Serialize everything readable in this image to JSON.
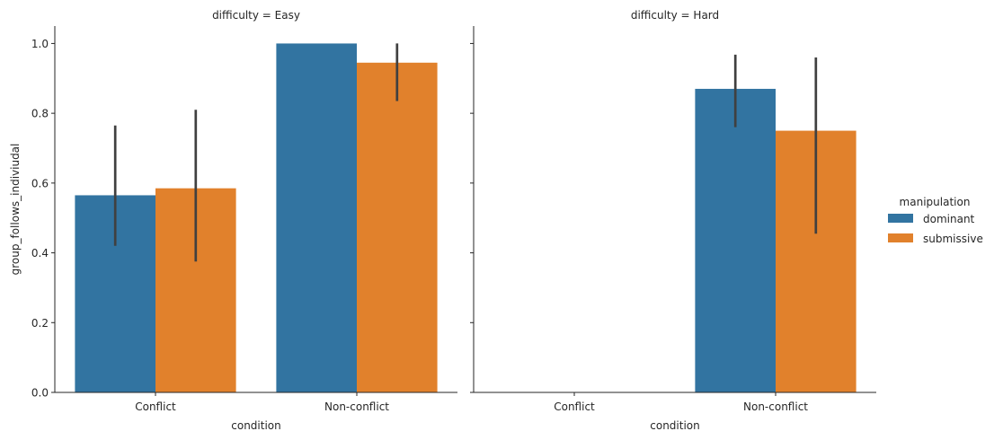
{
  "chart_data": {
    "type": "bar",
    "facet_variable": "difficulty",
    "panels": [
      {
        "title": "difficulty = Easy",
        "categories": [
          "Conflict",
          "Non-conflict"
        ],
        "series": [
          {
            "name": "dominant",
            "values": [
              0.565,
              1.0
            ],
            "ci_low": [
              0.42,
              1.0
            ],
            "ci_high": [
              0.765,
              1.0
            ]
          },
          {
            "name": "submissive",
            "values": [
              0.585,
              0.945
            ],
            "ci_low": [
              0.375,
              0.835
            ],
            "ci_high": [
              0.81,
              1.0
            ]
          }
        ]
      },
      {
        "title": "difficulty = Hard",
        "categories": [
          "Conflict",
          "Non-conflict"
        ],
        "series": [
          {
            "name": "dominant",
            "values": [
              null,
              0.87
            ],
            "ci_low": [
              null,
              0.76
            ],
            "ci_high": [
              null,
              0.968
            ]
          },
          {
            "name": "submissive",
            "values": [
              null,
              0.75
            ],
            "ci_low": [
              null,
              0.455
            ],
            "ci_high": [
              null,
              0.96
            ]
          }
        ]
      }
    ],
    "xlabel": "condition",
    "ylabel": "group_follows_indiviudal",
    "ylim": [
      0,
      1.05
    ],
    "yticks": [
      0.0,
      0.2,
      0.4,
      0.6,
      0.8,
      1.0
    ],
    "ytick_labels": [
      "0.0",
      "0.2",
      "0.4",
      "0.6",
      "0.8",
      "1.0"
    ],
    "legend": {
      "title": "manipulation",
      "entries": [
        "dominant",
        "submissive"
      ],
      "placement": "right"
    },
    "colors": {
      "dominant": "#3274a1",
      "submissive": "#e1812c",
      "errorbar": "#404040",
      "axis": "#262626"
    },
    "grid": false
  }
}
